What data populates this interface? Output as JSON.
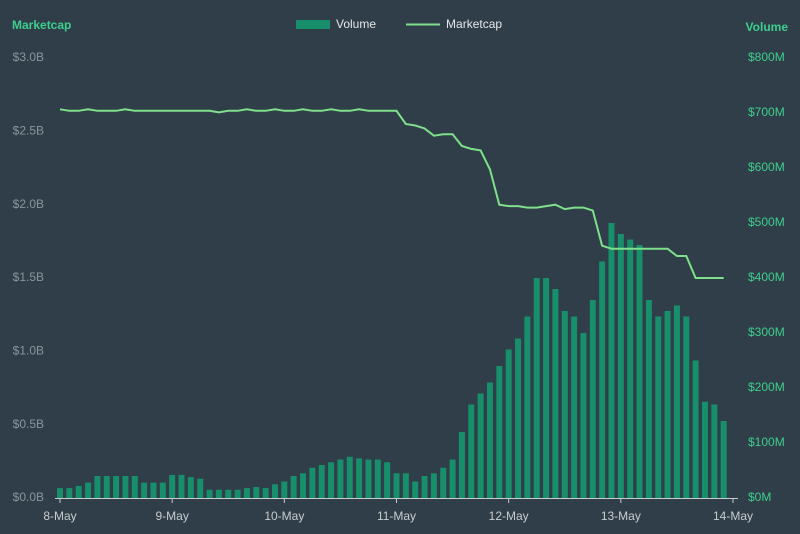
{
  "chart_data": {
    "type": "bar-line",
    "y_label": "Marketcap",
    "y2_label": "Volume",
    "legend": "top",
    "xlim": [
      0,
      144
    ],
    "xticks": [
      {
        "value": 0,
        "label": "8-May"
      },
      {
        "value": 24,
        "label": "9-May"
      },
      {
        "value": 48,
        "label": "10-May"
      },
      {
        "value": 72,
        "label": "11-May"
      },
      {
        "value": 96,
        "label": "12-May"
      },
      {
        "value": 120,
        "label": "13-May"
      },
      {
        "value": 144,
        "label": "14-May"
      }
    ],
    "ylim": [
      0,
      3
    ],
    "yticks": [
      {
        "value": 0,
        "label": "$0.0B"
      },
      {
        "value": 0.5,
        "label": "$0.5B"
      },
      {
        "value": 1,
        "label": "$1.0B"
      },
      {
        "value": 1.5,
        "label": "$1.5B"
      },
      {
        "value": 2,
        "label": "$2.0B"
      },
      {
        "value": 2.5,
        "label": "$2.5B"
      },
      {
        "value": 3,
        "label": "$3.0B"
      }
    ],
    "y2lim": [
      0,
      800
    ],
    "y2ticks": [
      {
        "value": 0,
        "label": "$0M"
      },
      {
        "value": 100,
        "label": "$100M"
      },
      {
        "value": 200,
        "label": "$200M"
      },
      {
        "value": 300,
        "label": "$300M"
      },
      {
        "value": 400,
        "label": "$400M"
      },
      {
        "value": 500,
        "label": "$500M"
      },
      {
        "value": 600,
        "label": "$600M"
      },
      {
        "value": 700,
        "label": "$700M"
      },
      {
        "value": 800,
        "label": "$800M"
      }
    ],
    "x": [
      0,
      2,
      4,
      6,
      8,
      10,
      12,
      14,
      16,
      18,
      20,
      22,
      24,
      26,
      28,
      30,
      32,
      34,
      36,
      38,
      40,
      42,
      44,
      46,
      48,
      50,
      52,
      54,
      56,
      58,
      60,
      62,
      64,
      66,
      68,
      70,
      72,
      74,
      76,
      78,
      80,
      82,
      84,
      86,
      88,
      90,
      92,
      94,
      96,
      98,
      100,
      102,
      104,
      106,
      108,
      110,
      112,
      114,
      116,
      118,
      120,
      122,
      124,
      126,
      128,
      130,
      132,
      134,
      136,
      138,
      140,
      142
    ],
    "series": [
      {
        "name": "Volume",
        "color": "#178f6b",
        "axis": "y2",
        "values": [
          18,
          18,
          22,
          28,
          40,
          40,
          40,
          40,
          40,
          28,
          28,
          28,
          42,
          42,
          38,
          35,
          15,
          15,
          15,
          15,
          18,
          20,
          18,
          25,
          30,
          40,
          45,
          55,
          60,
          65,
          70,
          75,
          72,
          70,
          70,
          65,
          45,
          45,
          30,
          40,
          45,
          55,
          70,
          120,
          170,
          190,
          210,
          240,
          270,
          290,
          330,
          400,
          400,
          380,
          340,
          330,
          300,
          360,
          430,
          500,
          480,
          470,
          460,
          360,
          330,
          340,
          350,
          330,
          250,
          175,
          170,
          140
        ]
      },
      {
        "name": "Marketcap",
        "color": "#7ee08a",
        "values": [
          2.65,
          2.64,
          2.64,
          2.65,
          2.64,
          2.64,
          2.64,
          2.65,
          2.64,
          2.64,
          2.64,
          2.64,
          2.64,
          2.64,
          2.64,
          2.64,
          2.64,
          2.63,
          2.64,
          2.64,
          2.65,
          2.64,
          2.64,
          2.65,
          2.64,
          2.64,
          2.65,
          2.64,
          2.64,
          2.65,
          2.64,
          2.64,
          2.65,
          2.64,
          2.64,
          2.64,
          2.64,
          2.55,
          2.54,
          2.52,
          2.47,
          2.48,
          2.48,
          2.4,
          2.38,
          2.37,
          2.24,
          2.0,
          1.99,
          1.99,
          1.98,
          1.98,
          1.99,
          2.0,
          1.97,
          1.98,
          1.98,
          1.96,
          1.72,
          1.7,
          1.7,
          1.7,
          1.7,
          1.7,
          1.7,
          1.7,
          1.65,
          1.65,
          1.5,
          1.5,
          1.5,
          1.5
        ]
      }
    ]
  }
}
